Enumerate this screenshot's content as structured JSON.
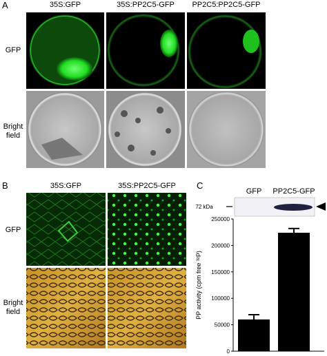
{
  "figure": {
    "panel_a": {
      "letter": "A",
      "columns": [
        "35S:GFP",
        "35S:PP2C5-GFP",
        "PP2C5:PP2C5-GFP"
      ],
      "rows": [
        "GFP",
        "Bright field"
      ]
    },
    "panel_b": {
      "letter": "B",
      "columns": [
        "35S:GFP",
        "35S:PP2C5-GFP"
      ],
      "rows": [
        "GFP",
        "Bright field"
      ]
    },
    "panel_c": {
      "letter": "C",
      "marker": "72 kDa"
    }
  },
  "chart_data": {
    "type": "bar",
    "categories": [
      "GFP",
      "PP2C5-GFP"
    ],
    "values": [
      60000,
      224000
    ],
    "errors": [
      9000,
      8000
    ],
    "color": "#000000",
    "ylabel": "PP activity (cpm free ³²P)",
    "ylim": [
      0,
      250000
    ],
    "yticks": [
      0,
      50000,
      100000,
      150000,
      200000,
      250000
    ]
  }
}
